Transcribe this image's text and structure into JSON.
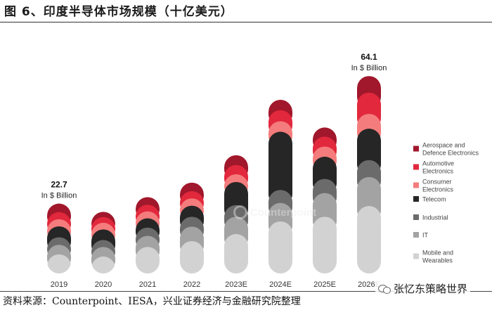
{
  "figure_title": "图 6、印度半导体市场规模（十亿美元）",
  "source_note": "资料来源：Counterpoint、IESA，兴业证券经济与金融研究院整理",
  "watermark": "Counterpoint",
  "brand": "张忆东策略世界",
  "colors": {
    "Aerospace and Defence Electronics": "#a1172b",
    "Automotive Electronics": "#e2283c",
    "Consumer Electronics": "#f47c7c",
    "Telecom": "#262626",
    "Industrial": "#6b6b6b",
    "IT": "#a3a3a3",
    "Mobile and Wearables": "#d2d2d2"
  },
  "chart_data": {
    "type": "bar",
    "stacked": true,
    "categories": [
      "2019",
      "2020",
      "2021",
      "2022",
      "2023E",
      "2024E",
      "2025E",
      "2026E"
    ],
    "ylim": [
      0,
      68
    ],
    "series": [
      {
        "name": "Mobile and Wearables",
        "values": [
          6.2,
          5.5,
          8.6,
          10.5,
          12.8,
          16.9,
          18.4,
          21.9
        ]
      },
      {
        "name": "IT",
        "values": [
          3.1,
          3.1,
          3.6,
          4.7,
          5.6,
          6.0,
          7.7,
          9.4
        ]
      },
      {
        "name": "Industrial",
        "values": [
          2.4,
          2.0,
          2.7,
          3.2,
          3.8,
          4.2,
          4.6,
          5.5
        ]
      },
      {
        "name": "Telecom",
        "values": [
          3.6,
          3.7,
          3.0,
          3.6,
          7.5,
          18.9,
          7.2,
          10.2
        ]
      },
      {
        "name": "Consumer Electronics",
        "values": [
          2.1,
          1.8,
          2.0,
          2.2,
          2.5,
          3.4,
          3.3,
          4.8
        ]
      },
      {
        "name": "Automotive Electronics",
        "values": [
          2.5,
          1.9,
          2.3,
          2.5,
          3.0,
          3.6,
          3.2,
          6.9
        ]
      },
      {
        "name": "Aerospace and Defence Electronics",
        "values": [
          2.8,
          2.0,
          2.6,
          2.8,
          3.2,
          3.4,
          3.0,
          5.4
        ]
      }
    ],
    "annotations": [
      {
        "category": "2019",
        "value": "22.7",
        "unit": "In $ Billion"
      },
      {
        "category": "2026E",
        "value": "64.1",
        "unit": "In $ Billion"
      }
    ],
    "legend": {
      "position": "right",
      "items": [
        {
          "series": "Aerospace and Defence Electronics",
          "lines": [
            "Aerospace and",
            "Defence Electronics"
          ]
        },
        {
          "series": "Automotive Electronics",
          "lines": [
            "Automotive",
            "Electronics"
          ]
        },
        {
          "series": "Consumer Electronics",
          "lines": [
            "Consumer",
            "Electronics"
          ]
        },
        {
          "series": "Telecom",
          "lines": [
            "Telecom"
          ]
        },
        {
          "series": "Industrial",
          "lines": [
            "Industrial"
          ]
        },
        {
          "series": "IT",
          "lines": [
            "IT"
          ]
        },
        {
          "series": "Mobile and Wearables",
          "lines": [
            "Mobile and",
            "Wearables"
          ]
        }
      ]
    },
    "grid": false
  }
}
